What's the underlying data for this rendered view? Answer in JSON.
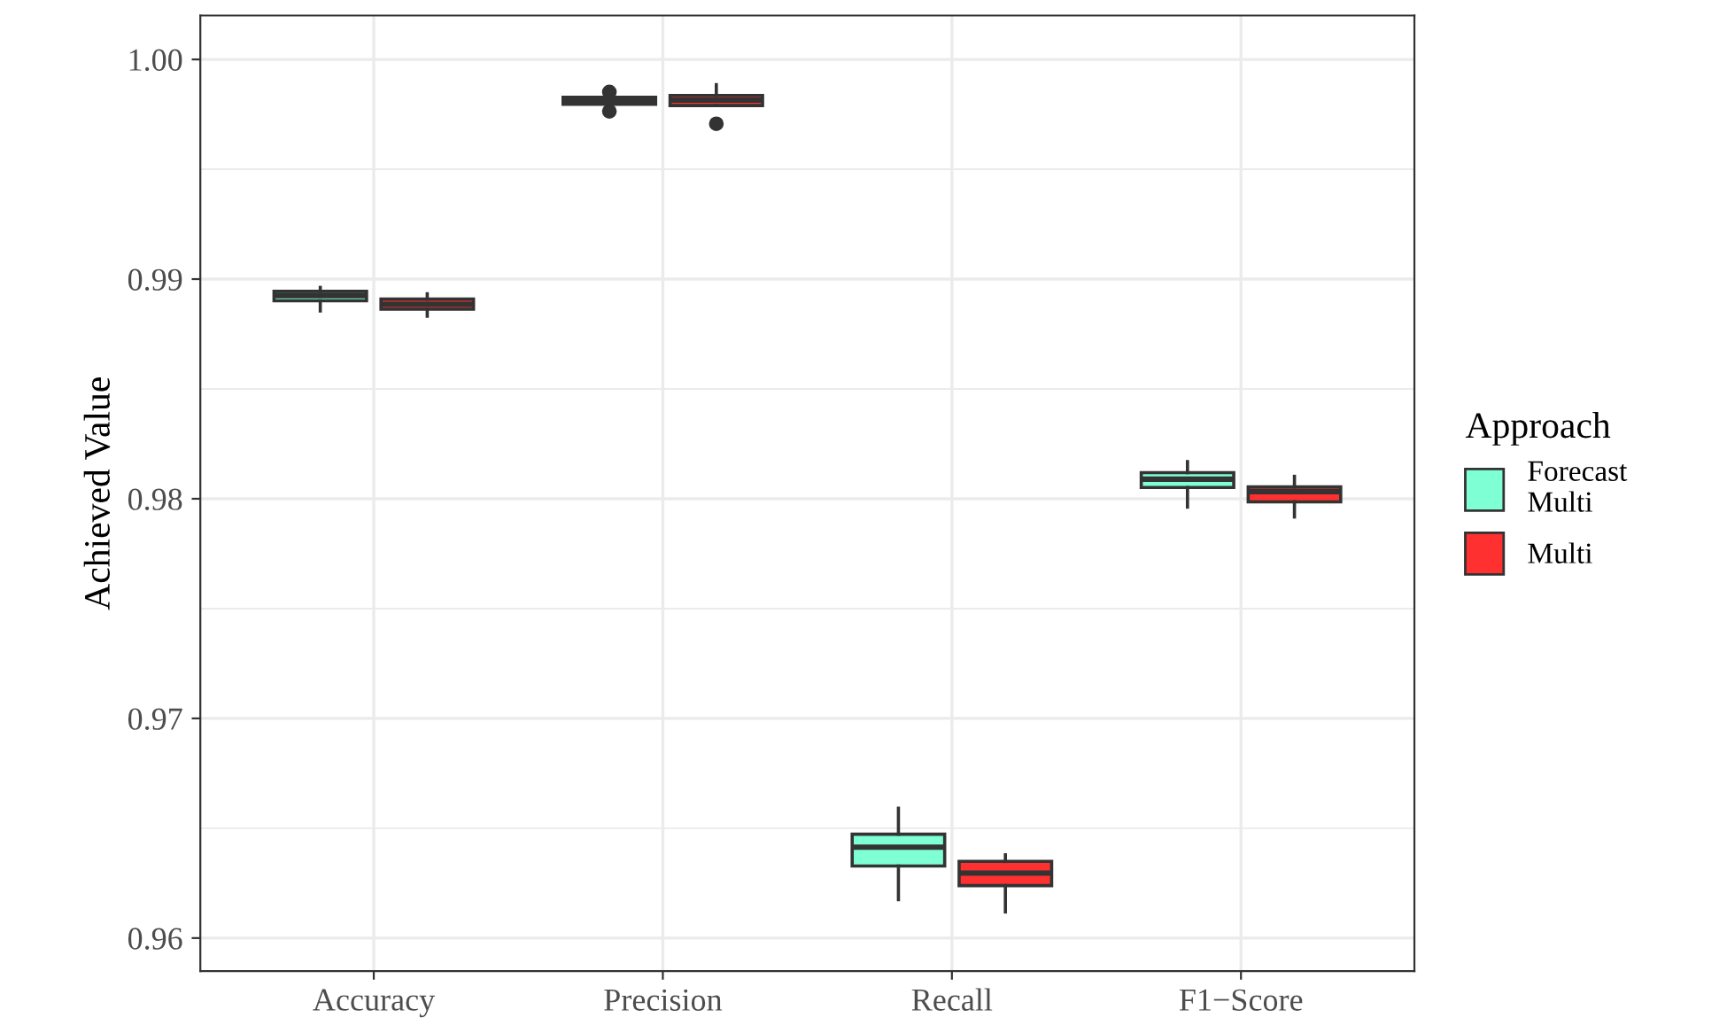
{
  "chart_data": {
    "type": "box",
    "ylabel": "Achieved Value",
    "legend_title": "Approach",
    "legend": "right",
    "grid": true,
    "categories": [
      "Accuracy",
      "Precision",
      "Recall",
      "F1−Score"
    ],
    "ylim": [
      0.9585,
      1.002
    ],
    "yticks": [
      {
        "value": 0.96,
        "label": "0.96"
      },
      {
        "value": 0.97,
        "label": "0.97"
      },
      {
        "value": 0.98,
        "label": "0.98"
      },
      {
        "value": 0.99,
        "label": "0.99"
      },
      {
        "value": 1.0,
        "label": "1.00"
      }
    ],
    "series": [
      {
        "name": "Forecast\nMulti",
        "color": "#7fffd4",
        "boxes": [
          {
            "low": 0.98855,
            "q1": 0.98901,
            "median": 0.98925,
            "q3": 0.98944,
            "high": 0.98962
          },
          {
            "low": 0.99796,
            "q1": 0.99796,
            "median": 0.99812,
            "q3": 0.99828,
            "high": 0.99828,
            "outliers": [
              0.99852,
              0.99764
            ]
          },
          {
            "low": 0.96175,
            "q1": 0.96328,
            "median": 0.96414,
            "q3": 0.96473,
            "high": 0.96591
          },
          {
            "low": 0.97962,
            "q1": 0.98051,
            "median": 0.98089,
            "q3": 0.98119,
            "high": 0.98169
          }
        ]
      },
      {
        "name": "Multi",
        "color": "#ff3030",
        "boxes": [
          {
            "low": 0.98831,
            "q1": 0.98863,
            "median": 0.98885,
            "q3": 0.98909,
            "high": 0.98933
          },
          {
            "low": 0.9979,
            "q1": 0.9979,
            "median": 0.99815,
            "q3": 0.99836,
            "high": 0.99885,
            "outliers": [
              0.99707
            ]
          },
          {
            "low": 0.96119,
            "q1": 0.96239,
            "median": 0.96296,
            "q3": 0.96349,
            "high": 0.96379
          },
          {
            "low": 0.97917,
            "q1": 0.97986,
            "median": 0.98032,
            "q3": 0.98054,
            "high": 0.98102
          }
        ]
      }
    ]
  }
}
